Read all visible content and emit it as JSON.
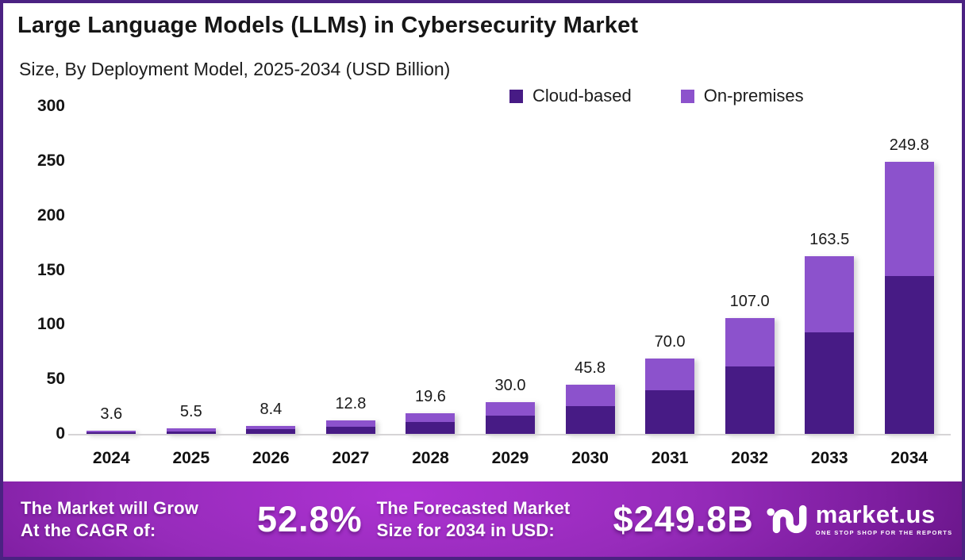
{
  "page": {
    "title": "Large Language Models (LLMs) in Cybersecurity Market",
    "subtitle": "Size, By Deployment Model, 2025-2034 (USD Billion)"
  },
  "colors": {
    "cloud_based": "#471b85",
    "on_premises": "#8c52cc",
    "border": "#4b2282",
    "baseline": "#d6d4d6"
  },
  "legend": {
    "items": [
      {
        "label": "Cloud-based",
        "color": "#471b85"
      },
      {
        "label": "On-premises",
        "color": "#8c52cc"
      }
    ]
  },
  "chart_data": {
    "type": "bar",
    "stacked": true,
    "title": "Large Language Models (LLMs) in Cybersecurity Market Size, By Deployment Model, 2025-2034 (USD Billion)",
    "categories": [
      "2024",
      "2025",
      "2026",
      "2027",
      "2028",
      "2029",
      "2030",
      "2031",
      "2032",
      "2033",
      "2034"
    ],
    "series": [
      {
        "name": "Cloud-based",
        "color": "#471b85",
        "values": [
          2.1,
          3.2,
          4.9,
          7.4,
          11.4,
          17.4,
          26.0,
          40.6,
          62.3,
          94.0,
          145.0
        ]
      },
      {
        "name": "On-premises",
        "color": "#8c52cc",
        "values": [
          1.5,
          2.3,
          3.5,
          5.4,
          8.2,
          12.6,
          19.8,
          29.4,
          44.7,
          69.5,
          104.8
        ]
      }
    ],
    "totals": [
      3.6,
      5.5,
      8.4,
      12.8,
      19.6,
      30.0,
      45.8,
      70.0,
      107.0,
      163.5,
      249.8
    ],
    "total_labels": [
      "3.6",
      "5.5",
      "8.4",
      "12.8",
      "19.6",
      "30.0",
      "45.8",
      "70.0",
      "107.0",
      "163.5",
      "249.8"
    ],
    "xlabel": "",
    "ylabel": "USD Billion",
    "ylim": [
      0,
      300
    ],
    "y_ticks": [
      300,
      250,
      200,
      150,
      100,
      50,
      0
    ],
    "grid": false,
    "legend_position": "top-right"
  },
  "footer": {
    "cagr_label_line1": "The Market will Grow",
    "cagr_label_line2": "At the CAGR of:",
    "cagr_value": "52.8%",
    "forecast_label_line1": "The Forecasted Market",
    "forecast_label_line2": "Size for 2034 in USD:",
    "forecast_value": "$249.8B",
    "brand_name": "market.us",
    "brand_tagline": "ONE STOP SHOP FOR THE REPORTS"
  }
}
